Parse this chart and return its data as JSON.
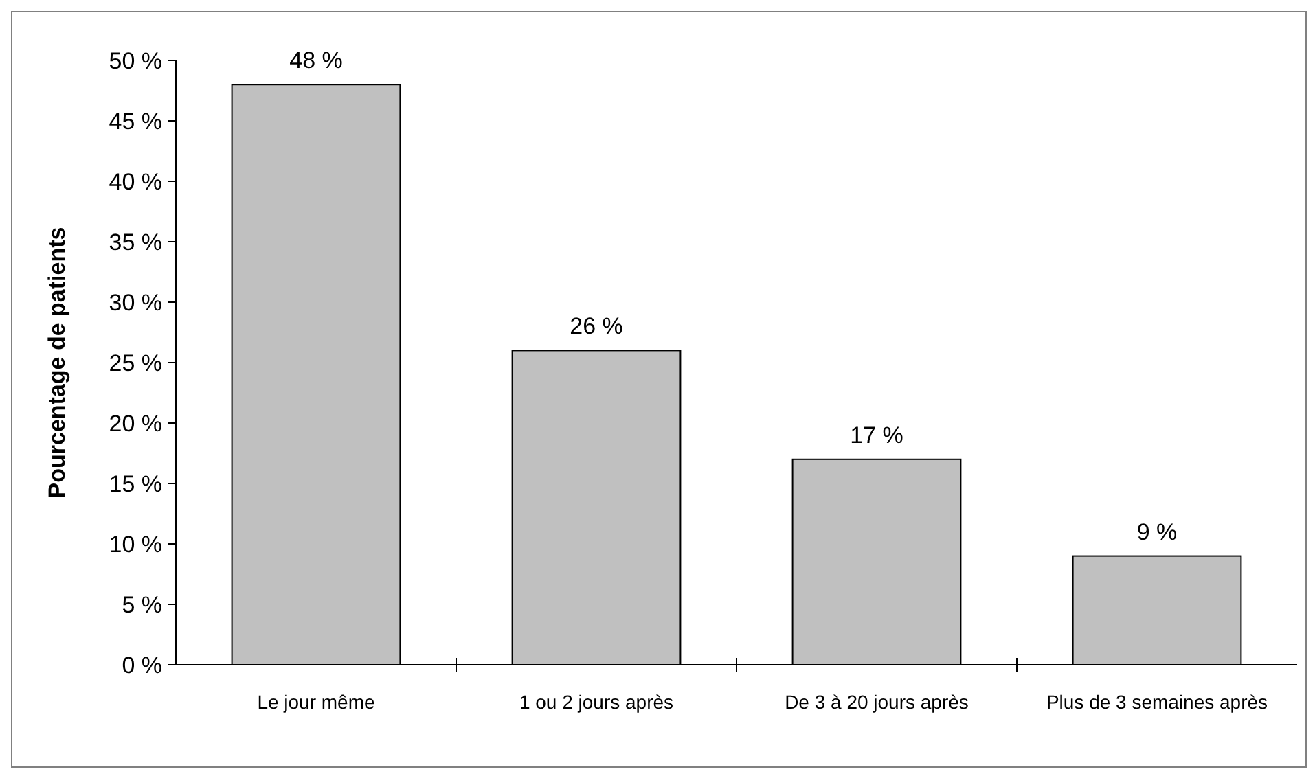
{
  "chart_data": {
    "type": "bar",
    "ylabel": "Pourcentage de patients",
    "categories": [
      "Le jour même",
      "1 ou 2 jours après",
      "De 3 à 20 jours après",
      "Plus de 3 semaines après"
    ],
    "values": [
      48,
      26,
      17,
      9
    ],
    "color": "#c0c0c0",
    "value_labels": [
      "48 %",
      "26 %",
      "17 %",
      "9 %"
    ],
    "ylim": [
      0,
      50
    ],
    "yticks": [
      {
        "value": 0,
        "label": "0 %"
      },
      {
        "value": 5,
        "label": "5 %"
      },
      {
        "value": 10,
        "label": "10 %"
      },
      {
        "value": 15,
        "label": "15 %"
      },
      {
        "value": 20,
        "label": "20 %"
      },
      {
        "value": 25,
        "label": "25 %"
      },
      {
        "value": 30,
        "label": "30 %"
      },
      {
        "value": 35,
        "label": "35 %"
      },
      {
        "value": 40,
        "label": "40 %"
      },
      {
        "value": 45,
        "label": "45 %"
      },
      {
        "value": 50,
        "label": "50 %"
      }
    ],
    "grid": false
  }
}
